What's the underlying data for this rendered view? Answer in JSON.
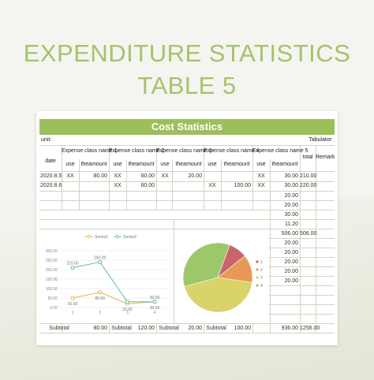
{
  "page": {
    "title_line1": "EXPENDITURE STATISTICS",
    "title_line2": "TABLE 5"
  },
  "sheet": {
    "banner": "Cost Statistics",
    "unit_label": "unit:",
    "tabulator_label": "Tabulator:",
    "headers": {
      "date": "date",
      "class1": "Expense class name 1",
      "class2": "Expense class name 2",
      "class3": "Expense class name 3",
      "class4": "Expense class name 4",
      "class5": "Expense class name 5",
      "total": "total",
      "remark": "Remark",
      "use": "use",
      "amount": "theamount"
    },
    "rows": [
      {
        "date": "2020.8.5",
        "use1": "XX",
        "amt1": "80.00",
        "use2": "XX",
        "amt2": "60.00",
        "use3": "XX",
        "amt3": "20.00",
        "use4": "",
        "amt4": "",
        "use5": "XX",
        "amt5": "30.00",
        "total": "210.00"
      },
      {
        "date": "2020.8.6",
        "use1": "",
        "amt1": "",
        "use2": "XX",
        "amt2": "60.00",
        "use3": "",
        "amt3": "",
        "use4": "XX",
        "amt4": "100.00",
        "use5": "XX",
        "amt5": "30.00",
        "total": "220.00"
      }
    ],
    "extra_col5": [
      "20.00",
      "20.00",
      "30.00",
      "11.20",
      "506.00",
      "20.00",
      "20.00",
      "20.00",
      "20.00",
      "20.00"
    ],
    "extra_total": [
      "",
      "",
      "",
      "",
      "506.00",
      "",
      "",
      "",
      "",
      ""
    ],
    "subtotal": {
      "label": "Subtotal",
      "amt1": "80.00",
      "amt2": "120.00",
      "amt3": "20.00",
      "amt4": "100.00",
      "amt5": "936.00",
      "total": "1256.00"
    }
  },
  "chart_data": [
    {
      "type": "line",
      "x": [
        1,
        2,
        3,
        4
      ],
      "x_tick_labels": [
        "1",
        "2",
        "3",
        "4"
      ],
      "series": [
        {
          "name": "Series1",
          "values": [
            50,
            80,
            20,
            30
          ],
          "color": "#e0b640"
        },
        {
          "name": "Series2",
          "values": [
            210,
            240,
            30,
            30
          ],
          "color": "#67b8b0"
        }
      ],
      "point_labels": [
        {
          "series": 0,
          "index": 0,
          "text": "50.00"
        },
        {
          "series": 0,
          "index": 1,
          "text": "80.00"
        },
        {
          "series": 0,
          "index": 2,
          "text": "20.00"
        },
        {
          "series": 0,
          "index": 3,
          "text": "30.00"
        },
        {
          "series": 1,
          "index": 0,
          "text": "210.00"
        },
        {
          "series": 1,
          "index": 1,
          "text": "240.00"
        },
        {
          "series": 1,
          "index": 3,
          "text": "30.00"
        }
      ],
      "y_tick_labels": [
        "0.00",
        "50.00",
        "100.00",
        "150.00",
        "200.00",
        "250.00",
        "300.00"
      ],
      "y_ticks": [
        0,
        50,
        100,
        150,
        200,
        250,
        300
      ],
      "ylim": [
        0,
        300
      ],
      "legend": "top",
      "grid": true
    },
    {
      "type": "pie",
      "categories": [
        "1",
        "2",
        "3",
        "4"
      ],
      "values": [
        80,
        20,
        30,
        100
      ],
      "colors": [
        "#9dc86a",
        "#c9646a",
        "#e79a58",
        "#d9d36a"
      ],
      "legend": "right"
    }
  ],
  "colors": {
    "accent": "#9cbf5a",
    "title": "#a5c36a"
  }
}
